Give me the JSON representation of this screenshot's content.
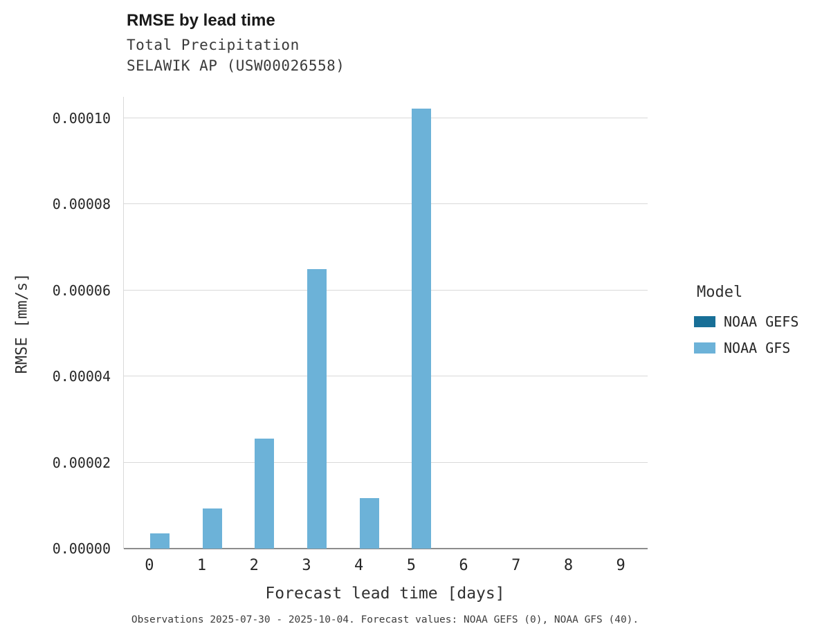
{
  "chart_data": {
    "type": "bar",
    "title": "RMSE by lead time",
    "subtitle_line1": "Total Precipitation",
    "subtitle_line2": "SELAWIK AP (USW00026558)",
    "xlabel": "Forecast lead time [days]",
    "ylabel": "RMSE [mm/s]",
    "categories": [
      "0",
      "1",
      "2",
      "3",
      "4",
      "5",
      "6",
      "7",
      "8",
      "9"
    ],
    "series": [
      {
        "name": "NOAA GEFS",
        "color": "#186f97",
        "values": [
          0,
          0,
          0,
          0,
          0,
          0,
          0,
          0,
          0,
          0
        ]
      },
      {
        "name": "NOAA GFS",
        "color": "#6cb2d8",
        "values": [
          3.5e-06,
          9.4e-06,
          2.55e-05,
          6.5e-05,
          1.18e-05,
          0.0001022,
          0,
          0,
          0,
          0
        ]
      }
    ],
    "ylim": [
      0,
      0.000105
    ],
    "yticks": [
      0,
      2e-05,
      4e-05,
      6e-05,
      8e-05,
      0.0001
    ],
    "ytick_labels": [
      "0.00000",
      "0.00002",
      "0.00004",
      "0.00006",
      "0.00008",
      "0.00010"
    ],
    "grid": "horizontal",
    "legend_position": "right",
    "legend_title": "Model",
    "caption": "Observations 2025-07-30 - 2025-10-04. Forecast values: NOAA GEFS (0), NOAA GFS (40)."
  }
}
